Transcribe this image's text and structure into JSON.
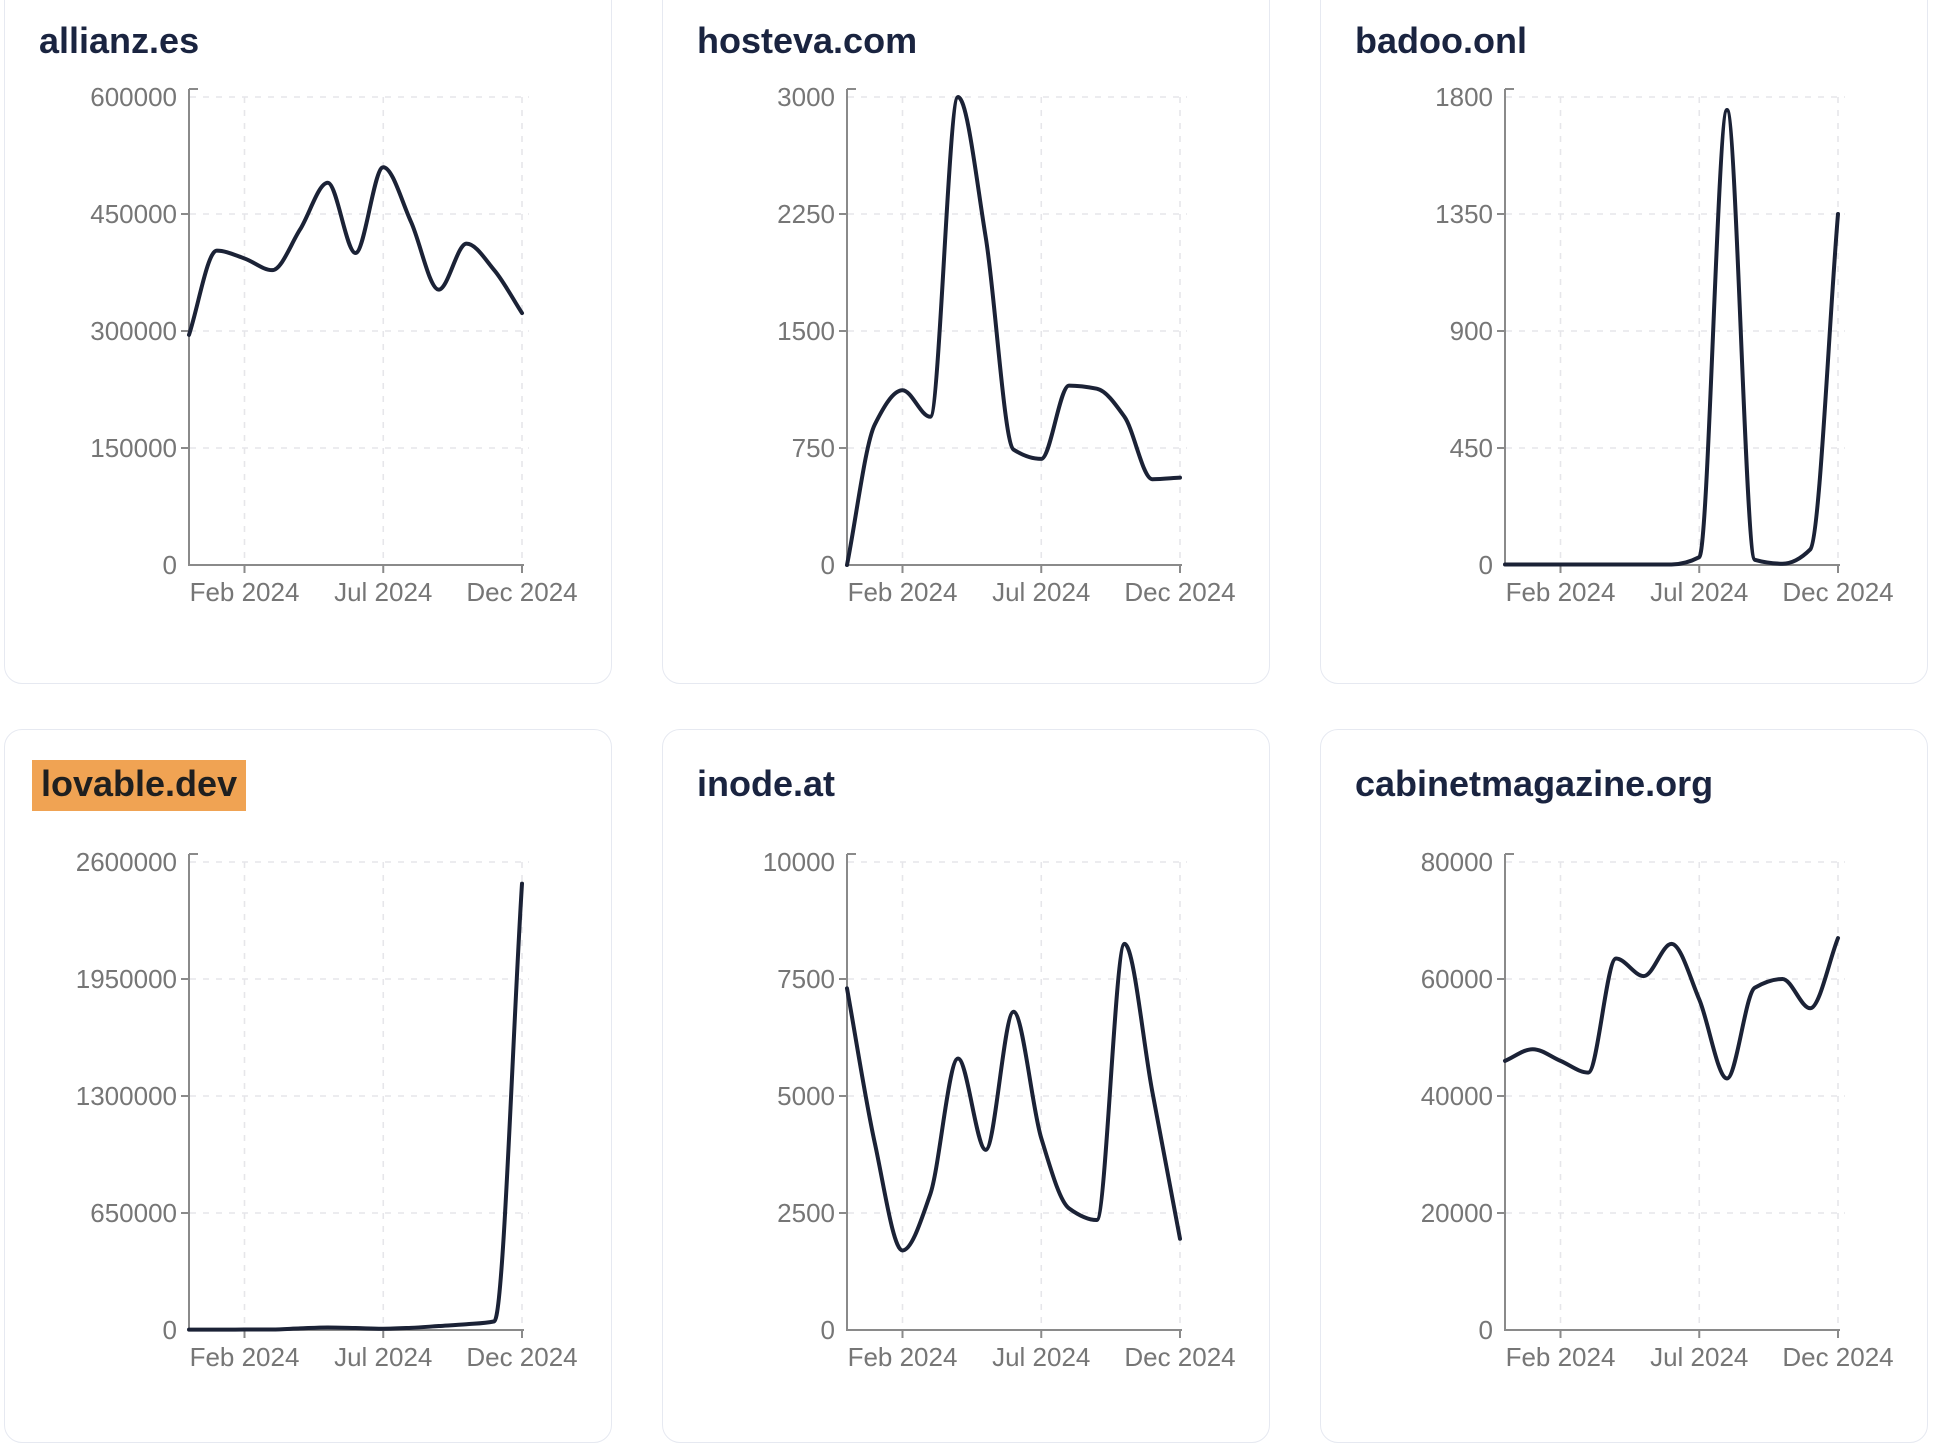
{
  "page": {
    "background": "#ffffff",
    "description": "Grid of six monthly line charts for domains"
  },
  "theme": {
    "line_color": "#1b2236",
    "title_color": "#1a2440",
    "tick_text_color": "#767676",
    "axis_color": "#8a8a8a",
    "grid_color": "#e6e6ea",
    "card_border_color": "#e6e9f1",
    "card_background": "#ffffff",
    "highlight_background": "#f0a353",
    "highlight_text_color": "#1f1f1f"
  },
  "x_axis": {
    "months": [
      "Dec 2023",
      "Jan 2024",
      "Feb 2024",
      "Mar 2024",
      "Apr 2024",
      "May 2024",
      "Jun 2024",
      "Jul 2024",
      "Aug 2024",
      "Sep 2024",
      "Oct 2024",
      "Nov 2024",
      "Dec 2024"
    ],
    "tick_labels": [
      "Feb 2024",
      "Jul 2024",
      "Dec 2024"
    ],
    "tick_month_indices": [
      2,
      7,
      12
    ]
  },
  "chart_data": [
    {
      "type": "line",
      "title": "allianz.es",
      "highlighted": false,
      "ylim": [
        0,
        600000
      ],
      "y_ticks": [
        0,
        150000,
        300000,
        450000,
        600000
      ],
      "x": [
        "Dec 2023",
        "Jan 2024",
        "Feb 2024",
        "Mar 2024",
        "Apr 2024",
        "May 2024",
        "Jun 2024",
        "Jul 2024",
        "Aug 2024",
        "Sep 2024",
        "Oct 2024",
        "Nov 2024",
        "Dec 2024"
      ],
      "values": [
        295000,
        403000,
        393000,
        378000,
        430000,
        490000,
        400000,
        510000,
        440000,
        353000,
        412000,
        378000,
        323000
      ]
    },
    {
      "type": "line",
      "title": "hosteva.com",
      "highlighted": false,
      "ylim": [
        0,
        3000
      ],
      "y_ticks": [
        0,
        750,
        1500,
        2250,
        3000
      ],
      "x": [
        "Dec 2023",
        "Jan 2024",
        "Feb 2024",
        "Mar 2024",
        "Apr 2024",
        "May 2024",
        "Jun 2024",
        "Jul 2024",
        "Aug 2024",
        "Sep 2024",
        "Oct 2024",
        "Nov 2024",
        "Dec 2024"
      ],
      "values": [
        0,
        900,
        1120,
        950,
        3000,
        2100,
        740,
        680,
        1150,
        1130,
        950,
        550,
        560
      ]
    },
    {
      "type": "line",
      "title": "badoo.onl",
      "highlighted": false,
      "ylim": [
        0,
        1800
      ],
      "y_ticks": [
        0,
        450,
        900,
        1350,
        1800
      ],
      "x": [
        "Dec 2023",
        "Jan 2024",
        "Feb 2024",
        "Mar 2024",
        "Apr 2024",
        "May 2024",
        "Jun 2024",
        "Jul 2024",
        "Aug 2024",
        "Sep 2024",
        "Oct 2024",
        "Nov 2024",
        "Dec 2024"
      ],
      "values": [
        2,
        2,
        2,
        2,
        2,
        2,
        2,
        30,
        1750,
        20,
        5,
        60,
        1350
      ]
    },
    {
      "type": "line",
      "title": "lovable.dev",
      "highlighted": true,
      "ylim": [
        0,
        2600000
      ],
      "y_ticks": [
        0,
        650000,
        1300000,
        1950000,
        2600000
      ],
      "x": [
        "Dec 2023",
        "Jan 2024",
        "Feb 2024",
        "Mar 2024",
        "Apr 2024",
        "May 2024",
        "Jun 2024",
        "Jul 2024",
        "Aug 2024",
        "Sep 2024",
        "Oct 2024",
        "Nov 2024",
        "Dec 2024"
      ],
      "values": [
        2000,
        2000,
        2500,
        3000,
        9000,
        14000,
        11000,
        7000,
        12000,
        22000,
        32000,
        48000,
        2480000
      ]
    },
    {
      "type": "line",
      "title": "inode.at",
      "highlighted": false,
      "ylim": [
        0,
        10000
      ],
      "y_ticks": [
        0,
        2500,
        5000,
        7500,
        10000
      ],
      "x": [
        "Dec 2023",
        "Jan 2024",
        "Feb 2024",
        "Mar 2024",
        "Apr 2024",
        "May 2024",
        "Jun 2024",
        "Jul 2024",
        "Aug 2024",
        "Sep 2024",
        "Oct 2024",
        "Nov 2024",
        "Dec 2024"
      ],
      "values": [
        7300,
        4000,
        1700,
        2900,
        5800,
        3850,
        6800,
        4100,
        2600,
        2350,
        8250,
        5100,
        1950
      ]
    },
    {
      "type": "line",
      "title": "cabinetmagazine.org",
      "highlighted": false,
      "ylim": [
        0,
        80000
      ],
      "y_ticks": [
        0,
        20000,
        40000,
        60000,
        80000
      ],
      "x": [
        "Dec 2023",
        "Jan 2024",
        "Feb 2024",
        "Mar 2024",
        "Apr 2024",
        "May 2024",
        "Jun 2024",
        "Jul 2024",
        "Aug 2024",
        "Sep 2024",
        "Oct 2024",
        "Nov 2024",
        "Dec 2024"
      ],
      "values": [
        46000,
        48000,
        46000,
        44000,
        63500,
        60500,
        66000,
        56500,
        43000,
        58500,
        60000,
        55000,
        67000
      ]
    }
  ]
}
